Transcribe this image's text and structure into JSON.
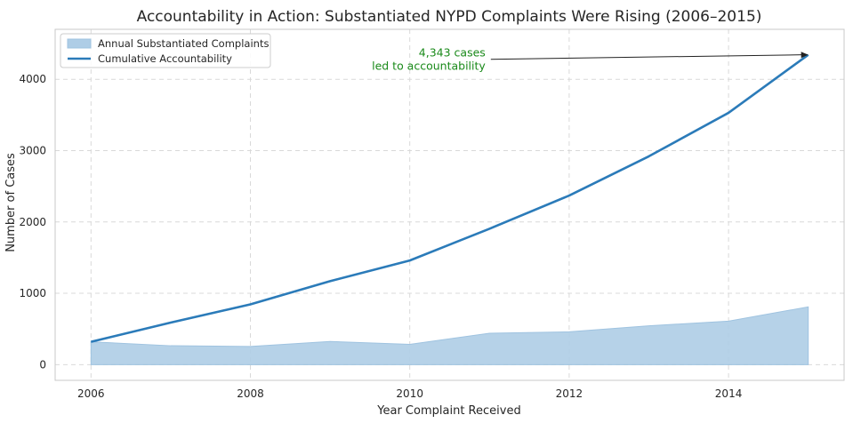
{
  "chart_data": {
    "type": "area",
    "title": "Accountability in Action: Substantiated NYPD Complaints Were Rising (2006–2015)",
    "xlabel": "Year Complaint Received",
    "ylabel": "Number of Cases",
    "x": [
      2006,
      2007,
      2008,
      2009,
      2010,
      2011,
      2012,
      2013,
      2014,
      2015
    ],
    "xlim": [
      2005.55,
      2015.45
    ],
    "ylim": [
      -220,
      4700
    ],
    "xticks": [
      2006,
      2008,
      2010,
      2012,
      2014
    ],
    "yticks": [
      0,
      1000,
      2000,
      3000,
      4000
    ],
    "grid": true,
    "legend_position": "top-left",
    "series": [
      {
        "name": "Annual Substantiated Complaints",
        "kind": "area",
        "color": "#aecde6",
        "values": [
          320,
          265,
          255,
          325,
          285,
          440,
          460,
          545,
          610,
          810
        ]
      },
      {
        "name": "Cumulative Accountability",
        "kind": "line",
        "color": "#2b7bb9",
        "values": [
          320,
          590,
          845,
          1170,
          1460,
          1905,
          2370,
          2920,
          3530,
          4343
        ]
      }
    ],
    "annotation": {
      "lines": [
        "4,343 cases",
        "led to accountability"
      ],
      "target_x": 2015,
      "target_y": 4343,
      "text_x": 2010.95,
      "text_y": 4280,
      "color": "#1a8a1a"
    }
  }
}
